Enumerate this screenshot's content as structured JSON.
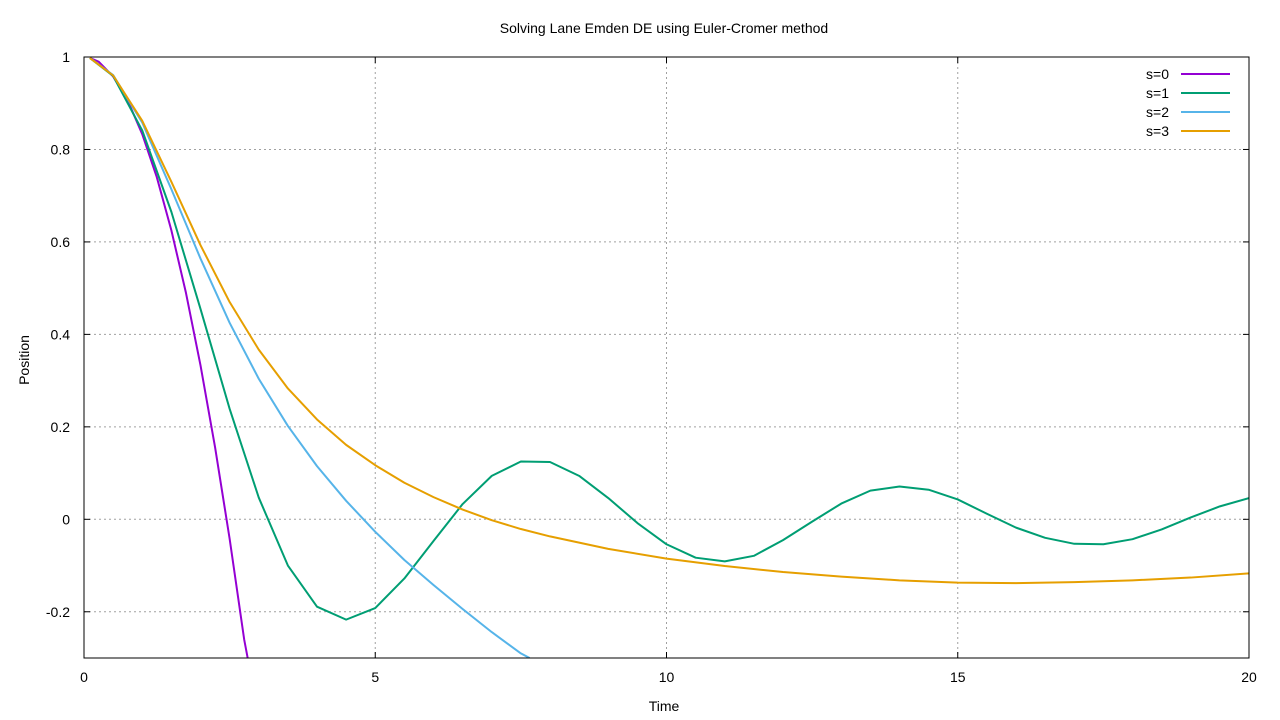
{
  "chart_data": {
    "type": "line",
    "title": "Solving Lane Emden DE using Euler-Cromer method",
    "xlabel": "Time",
    "ylabel": "Position",
    "xlim": [
      0,
      20
    ],
    "ylim": [
      -0.3,
      1.0
    ],
    "xticks": [
      0,
      5,
      10,
      15,
      20
    ],
    "xtick_labels": [
      "0",
      "5",
      "10",
      "15",
      "20"
    ],
    "yticks": [
      -0.2,
      0,
      0.2,
      0.4,
      0.6,
      0.8,
      1.0
    ],
    "ytick_labels": [
      "-0.2",
      "0",
      "0.2",
      "0.4",
      "0.6",
      "0.8",
      "1"
    ],
    "grid": true,
    "legend_position": "top-right",
    "series": [
      {
        "name": "s=0",
        "color": "#9400d3",
        "x": [
          0.1,
          0.25,
          0.5,
          0.75,
          1.0,
          1.25,
          1.5,
          1.75,
          2.0,
          2.25,
          2.5,
          2.75,
          2.81
        ],
        "y": [
          0.998,
          0.99,
          0.958,
          0.906,
          0.833,
          0.74,
          0.625,
          0.49,
          0.333,
          0.156,
          -0.042,
          -0.26,
          -0.3
        ]
      },
      {
        "name": "s=1",
        "color": "#009e73",
        "x": [
          0.1,
          0.5,
          1.0,
          1.5,
          2.0,
          2.5,
          3.0,
          3.5,
          4.0,
          4.5,
          5.0,
          5.5,
          6.0,
          6.5,
          7.0,
          7.5,
          8.0,
          8.5,
          9.0,
          9.5,
          10.0,
          10.5,
          11.0,
          11.5,
          12.0,
          12.5,
          13.0,
          13.5,
          14.0,
          14.5,
          15.0,
          15.5,
          16.0,
          16.5,
          17.0,
          17.5,
          18.0,
          18.5,
          19.0,
          19.5,
          20.0
        ],
        "y": [
          0.998,
          0.959,
          0.841,
          0.665,
          0.455,
          0.239,
          0.047,
          -0.1,
          -0.189,
          -0.217,
          -0.192,
          -0.128,
          -0.047,
          0.033,
          0.094,
          0.125,
          0.124,
          0.094,
          0.046,
          -0.008,
          -0.054,
          -0.083,
          -0.091,
          -0.079,
          -0.045,
          -0.005,
          0.034,
          0.062,
          0.071,
          0.064,
          0.043,
          0.012,
          -0.018,
          -0.04,
          -0.053,
          -0.054,
          -0.043,
          -0.022,
          0.004,
          0.028,
          0.046
        ]
      },
      {
        "name": "s=2",
        "color": "#56b4e9",
        "x": [
          0.1,
          0.5,
          1.0,
          1.5,
          2.0,
          2.5,
          3.0,
          3.5,
          4.0,
          4.5,
          5.0,
          5.5,
          6.0,
          6.5,
          7.0,
          7.5,
          7.65
        ],
        "y": [
          0.998,
          0.961,
          0.858,
          0.714,
          0.564,
          0.425,
          0.304,
          0.202,
          0.115,
          0.04,
          -0.027,
          -0.088,
          -0.142,
          -0.194,
          -0.244,
          -0.29,
          -0.3
        ]
      },
      {
        "name": "s=3",
        "color": "#e69f00",
        "x": [
          0.1,
          0.5,
          1.0,
          1.5,
          2.0,
          2.5,
          3.0,
          3.5,
          4.0,
          4.5,
          5.0,
          5.5,
          6.0,
          6.5,
          7.0,
          7.5,
          8.0,
          9.0,
          10.0,
          11.0,
          12.0,
          13.0,
          14.0,
          15.0,
          16.0,
          17.0,
          18.0,
          19.0,
          20.0
        ],
        "y": [
          0.998,
          0.96,
          0.862,
          0.73,
          0.593,
          0.47,
          0.367,
          0.283,
          0.216,
          0.161,
          0.117,
          0.079,
          0.048,
          0.021,
          -0.002,
          -0.021,
          -0.037,
          -0.064,
          -0.085,
          -0.101,
          -0.114,
          -0.124,
          -0.132,
          -0.137,
          -0.138,
          -0.136,
          -0.132,
          -0.126,
          -0.117
        ]
      }
    ]
  }
}
